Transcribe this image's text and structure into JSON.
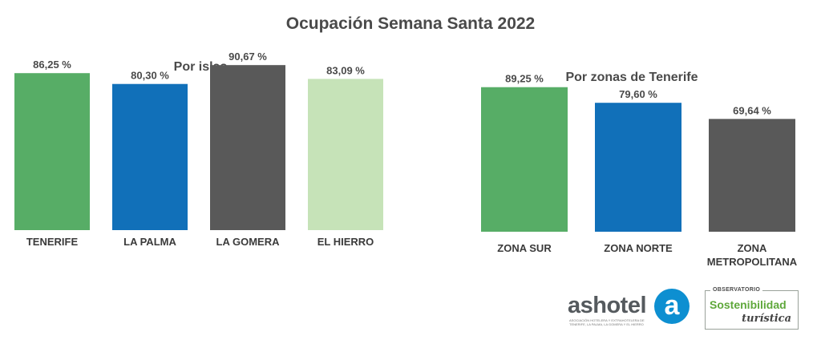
{
  "title": "Ocupación Semana Santa 2022",
  "chart_data": [
    {
      "type": "bar",
      "title": "Por islas",
      "categories": [
        "TENERIFE",
        "LA PALMA",
        "LA GOMERA",
        "EL HIERRO"
      ],
      "values": [
        86.25,
        80.3,
        90.67,
        83.09
      ],
      "value_labels": [
        "86,25 %",
        "80,30 %",
        "90,67 %",
        "83,09 %"
      ],
      "colors": [
        "#57ad66",
        "#1170b9",
        "#595959",
        "#c6e3b8"
      ],
      "ylim": [
        0,
        100
      ],
      "grid": false
    },
    {
      "type": "bar",
      "title": "Por zonas de Tenerife",
      "categories": [
        [
          "ZONA SUR"
        ],
        [
          "ZONA NORTE"
        ],
        [
          "ZONA",
          "METROPOLITANA"
        ]
      ],
      "values": [
        89.25,
        79.6,
        69.64
      ],
      "value_labels": [
        "89,25 %",
        "79,60 %",
        "69,64 %"
      ],
      "colors": [
        "#57ad66",
        "#1170b9",
        "#595959"
      ],
      "ylim": [
        0,
        100
      ],
      "grid": false
    }
  ],
  "logos": {
    "ashotel_word": "ashotel",
    "ashotel_letter": "a",
    "ashotel_sub": "Asociación Hotelera y Extrahotelera de Tenerife, La Palma, La Gomera y El Hierro",
    "obs_top": "OBSERVATORIO",
    "obs_mid": "Sostenibilidad",
    "obs_bot": "turística"
  }
}
